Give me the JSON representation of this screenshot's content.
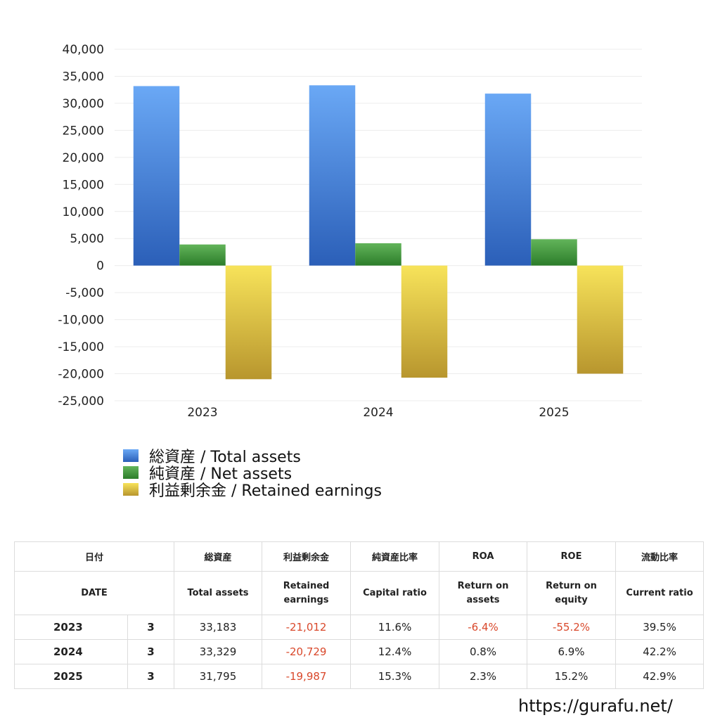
{
  "chart_data": {
    "type": "bar",
    "categories": [
      "2023",
      "2024",
      "2025"
    ],
    "series": [
      {
        "name": "総資産 / Total assets",
        "values": [
          33183,
          33329,
          31795
        ],
        "color_top": "#6aa8f5",
        "color_bottom": "#2b5fb8"
      },
      {
        "name": "純資産 / Net assets",
        "values": [
          3900,
          4130,
          4870
        ],
        "color_top": "#62b45a",
        "color_bottom": "#2c7d2a"
      },
      {
        "name": "利益剰余金 / Retained earnings",
        "values": [
          -21012,
          -20729,
          -19987
        ],
        "color_top": "#f7e35a",
        "color_bottom": "#b8962e"
      }
    ],
    "ylim": [
      -25000,
      40000
    ],
    "yticks": [
      40000,
      35000,
      30000,
      25000,
      20000,
      15000,
      10000,
      5000,
      0,
      -5000,
      -10000,
      -15000,
      -20000,
      -25000
    ],
    "ytick_labels": [
      "40,000",
      "35,000",
      "30,000",
      "25,000",
      "20,000",
      "15,000",
      "10,000",
      "5,000",
      "0",
      "-5,000",
      "-10,000",
      "-15,000",
      "-20,000",
      "-25,000"
    ],
    "grid": true,
    "legend_position": "bottom-left"
  },
  "legend": [
    {
      "label": "総資産 / Total assets",
      "color_top": "#6aa8f5",
      "color_bottom": "#2b5fb8"
    },
    {
      "label": "純資産 / Net assets",
      "color_top": "#62b45a",
      "color_bottom": "#2c7d2a"
    },
    {
      "label": "利益剰余金 / Retained earnings",
      "color_top": "#f7e35a",
      "color_bottom": "#b8962e"
    }
  ],
  "table": {
    "header_jp": [
      "日付",
      "総資産",
      "利益剰余金",
      "純資産比率",
      "ROA",
      "ROE",
      "流動比率"
    ],
    "header_en": [
      "DATE",
      "Total assets",
      "Retained\nearnings",
      "Capital ratio",
      "Return on\nassets",
      "Return on\nequity",
      "Current ratio"
    ],
    "rows": [
      {
        "year": "2023",
        "month": "3",
        "total_assets": "33,183",
        "retained_earnings": "-21,012",
        "capital_ratio": "11.6%",
        "roa": "-6.4%",
        "roe": "-55.2%",
        "current_ratio": "39.5%"
      },
      {
        "year": "2024",
        "month": "3",
        "total_assets": "33,329",
        "retained_earnings": "-20,729",
        "capital_ratio": "12.4%",
        "roa": "0.8%",
        "roe": "6.9%",
        "current_ratio": "42.2%"
      },
      {
        "year": "2025",
        "month": "3",
        "total_assets": "31,795",
        "retained_earnings": "-19,987",
        "capital_ratio": "15.3%",
        "roa": "2.3%",
        "roe": "15.2%",
        "current_ratio": "42.9%"
      }
    ],
    "negative_color": "#d9482b"
  },
  "site_url": "https://gurafu.net/"
}
